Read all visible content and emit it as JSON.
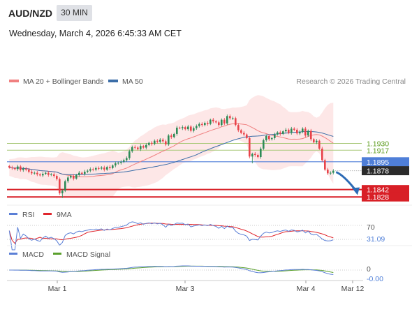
{
  "header": {
    "pair": "AUD/NZD",
    "timeframe": "30 MIN",
    "datetime": "Wednesday, March 4, 2026 6:45:33 AM CET"
  },
  "credit": "Research © 2026 Trading Central",
  "colors": {
    "bull": "#2e8b57",
    "bear": "#e8434a",
    "ma20": "#f08080",
    "band": "#fde3e3",
    "ma50": "#3c6ea8",
    "level_green": "#a8c978",
    "level_blue": "#4f7fd8",
    "level_red": "#d81f26",
    "forecast": "#2d6bb5",
    "rsi": "#5b7fd6",
    "rsi_ma": "#e0262d",
    "macd": "#5b7fd6",
    "macd_signal": "#5aa02c"
  },
  "chart_data": [
    {
      "type": "candlestick",
      "legend": [
        {
          "name": "MA 20 + Bollinger Bands",
          "color": "#f08080"
        },
        {
          "name": "MA 50",
          "color": "#3c6ea8"
        }
      ],
      "x_ticks": [
        "Mar 1",
        "Mar 3",
        "Mar 4",
        "Mar 12"
      ],
      "ylim": [
        1.1815,
        1.2025
      ],
      "closes": [
        1.1884,
        1.1883,
        1.1881,
        1.1886,
        1.1879,
        1.1882,
        1.188,
        1.1876,
        1.1873,
        1.1874,
        1.1871,
        1.1869,
        1.1872,
        1.1874,
        1.187,
        1.1871,
        1.1868,
        1.1862,
        1.1835,
        1.184,
        1.1858,
        1.1865,
        1.1868,
        1.1863,
        1.187,
        1.1874,
        1.1872,
        1.1876,
        1.1878,
        1.1881,
        1.188,
        1.1883,
        1.1882,
        1.1884,
        1.188,
        1.1885,
        1.1883,
        1.1888,
        1.1892,
        1.1893,
        1.1895,
        1.1898,
        1.1902,
        1.1915,
        1.1923,
        1.1922,
        1.1919,
        1.1925,
        1.1922,
        1.1927,
        1.1931,
        1.1929,
        1.1935,
        1.1933,
        1.1937,
        1.1934,
        1.1928,
        1.1945,
        1.1942,
        1.1948,
        1.196,
        1.1959,
        1.1961,
        1.1957,
        1.1962,
        1.1954,
        1.1959,
        1.1963,
        1.1967,
        1.1965,
        1.1969,
        1.1967,
        1.1975,
        1.1972,
        1.197,
        1.1965,
        1.1975,
        1.1968,
        1.1982,
        1.1978,
        1.1978,
        1.1965,
        1.1955,
        1.195,
        1.1947,
        1.194,
        1.1905,
        1.191,
        1.1908,
        1.1904,
        1.192,
        1.1936,
        1.1944,
        1.1938,
        1.194,
        1.1947,
        1.1951,
        1.1948,
        1.1953,
        1.1956,
        1.195,
        1.1958,
        1.1956,
        1.1949,
        1.1952,
        1.1958,
        1.1945,
        1.1954,
        1.1938,
        1.1932,
        1.1935,
        1.192,
        1.1898,
        1.188,
        1.1873,
        1.1874,
        1.1878
      ]
    },
    {
      "type": "line",
      "legend": [
        {
          "name": "RSI",
          "color": "#5b7fd6"
        },
        {
          "name": "9MA",
          "color": "#e0262d"
        }
      ],
      "ylim": [
        20,
        80
      ],
      "levels": [
        {
          "label": "70",
          "value": 70
        },
        {
          "label": "30",
          "value": 30
        }
      ],
      "last_value": "31.09"
    },
    {
      "type": "line",
      "legend": [
        {
          "name": "MACD",
          "color": "#5b7fd6"
        },
        {
          "name": "MACD Signal",
          "color": "#5aa02c"
        }
      ],
      "ylim": [
        -0.004,
        0.004
      ],
      "levels": [
        {
          "label": "0",
          "value": 0
        }
      ],
      "last_value": "-0.00"
    }
  ],
  "levels": [
    {
      "label": "1.1930",
      "value": 1.193,
      "kind": "green"
    },
    {
      "label": "1.1917",
      "value": 1.1917,
      "kind": "green"
    },
    {
      "label": "1.1895",
      "value": 1.1895,
      "kind": "blue"
    },
    {
      "label": "1.1878",
      "value": 1.1878,
      "kind": "last"
    },
    {
      "label": "1.1842",
      "value": 1.1842,
      "kind": "red"
    },
    {
      "label": "1.1828",
      "value": 1.1828,
      "kind": "red"
    }
  ],
  "forecast_target": 1.1833
}
